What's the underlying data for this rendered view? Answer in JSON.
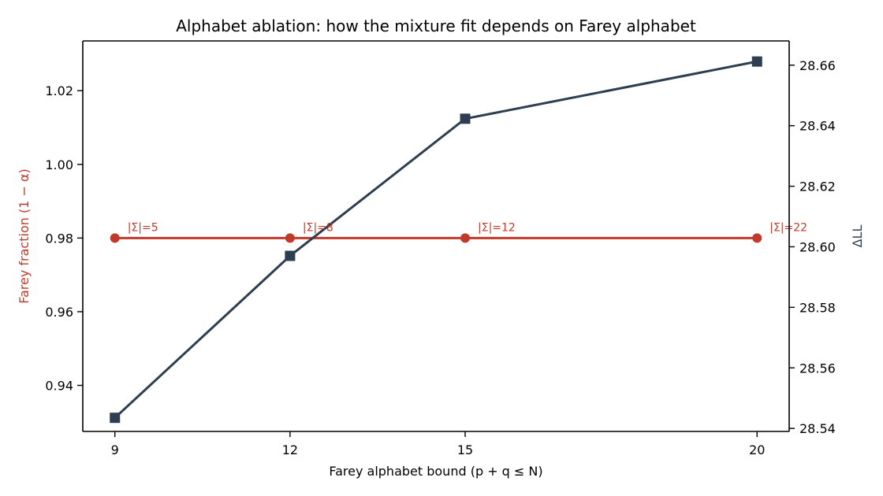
{
  "chart_data": {
    "type": "line",
    "title": "Alphabet ablation: how the mixture fit depends on Farey alphabet",
    "xlabel": "Farey alphabet bound  (p + q ≤ N)",
    "ylabel_left": "Farey fraction (1 − α)",
    "ylabel_right": "ΔLL",
    "x": [
      9,
      12,
      15,
      20
    ],
    "x_ticks": [
      "9",
      "12",
      "15",
      "20"
    ],
    "xlim": [
      8.45,
      20.55
    ],
    "ylim_left": [
      0.9275,
      1.0335
    ],
    "ylim_right": [
      28.539,
      28.668
    ],
    "y_ticks_left": [
      0.94,
      0.96,
      0.98,
      1.0,
      1.02
    ],
    "y_ticks_left_labels": [
      "0.94",
      "0.96",
      "0.98",
      "1.00",
      "1.02"
    ],
    "y_ticks_right": [
      28.54,
      28.56,
      28.58,
      28.6,
      28.62,
      28.64,
      28.66
    ],
    "y_ticks_right_labels": [
      "28.54",
      "28.56",
      "28.58",
      "28.60",
      "28.62",
      "28.64",
      "28.66"
    ],
    "grid": false,
    "series": [
      {
        "axis": "left",
        "marker": "circle",
        "color": "#c0392b",
        "values": [
          0.98,
          0.98,
          0.98,
          0.98
        ]
      },
      {
        "axis": "right",
        "marker": "square",
        "color": "#2c3e50",
        "values": [
          28.5435,
          28.597,
          28.6423,
          28.6612
        ]
      }
    ],
    "annotations": [
      "|Σ|=5",
      "|Σ|=8",
      "|Σ|=12",
      "|Σ|=22"
    ],
    "colors": {
      "left_axis_label": "#c0392b",
      "right_axis_label": "#2c3e50",
      "annotation": "#c0392b"
    }
  }
}
